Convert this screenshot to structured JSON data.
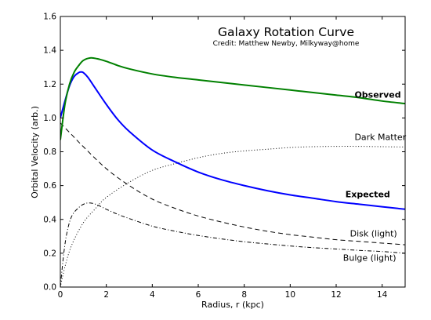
{
  "chart_data": {
    "type": "line",
    "title": "Galaxy Rotation Curve",
    "subtitle": "Credit:  Matthew Newby, Milkyway@home",
    "xlabel": "Radius, r (kpc)",
    "ylabel": "Orbital Velocity (arb.)",
    "xlim": [
      0,
      15
    ],
    "ylim": [
      0.0,
      1.6
    ],
    "x_ticks": [
      0,
      2,
      4,
      6,
      8,
      10,
      12,
      14
    ],
    "x_tick_labels": [
      "0",
      "2",
      "4",
      "6",
      "8",
      "10",
      "12",
      "14"
    ],
    "y_ticks": [
      0.0,
      0.2,
      0.4,
      0.6,
      0.8,
      1.0,
      1.2,
      1.4,
      1.6
    ],
    "y_tick_labels": [
      "0.0",
      "0.2",
      "0.4",
      "0.6",
      "0.8",
      "1.0",
      "1.2",
      "1.4",
      "1.6"
    ],
    "grid": false,
    "legend": "none",
    "series": [
      {
        "name": "Observed",
        "color": "#008000",
        "style": "solid",
        "x": [
          0,
          0.2,
          0.4,
          0.6,
          0.8,
          1.0,
          1.3,
          1.6,
          2.0,
          2.5,
          3,
          4,
          5,
          6,
          7,
          8,
          9,
          10,
          11,
          12,
          13,
          14,
          15
        ],
        "y": [
          0.87,
          1.08,
          1.2,
          1.27,
          1.31,
          1.34,
          1.355,
          1.35,
          1.335,
          1.31,
          1.29,
          1.26,
          1.24,
          1.225,
          1.21,
          1.195,
          1.18,
          1.165,
          1.15,
          1.135,
          1.12,
          1.1,
          1.085
        ]
      },
      {
        "name": "Expected",
        "color": "#0000ff",
        "style": "solid",
        "x": [
          0,
          0.2,
          0.4,
          0.6,
          0.8,
          0.9,
          1.0,
          1.2,
          1.5,
          2.0,
          2.5,
          3,
          4,
          5,
          6,
          7,
          8,
          9,
          10,
          11,
          12,
          13,
          14,
          15
        ],
        "y": [
          1.0,
          1.1,
          1.19,
          1.245,
          1.268,
          1.272,
          1.268,
          1.24,
          1.18,
          1.08,
          0.99,
          0.92,
          0.81,
          0.74,
          0.68,
          0.635,
          0.6,
          0.57,
          0.545,
          0.525,
          0.505,
          0.49,
          0.475,
          0.46
        ]
      },
      {
        "name": "Dark Matter",
        "color": "#000000",
        "style": "dotted",
        "x": [
          0,
          0.2,
          0.5,
          1.0,
          1.5,
          2,
          3,
          4,
          5,
          6,
          7,
          8,
          9,
          10,
          11,
          12,
          13,
          14,
          15
        ],
        "y": [
          0.0,
          0.12,
          0.25,
          0.38,
          0.46,
          0.53,
          0.62,
          0.69,
          0.73,
          0.765,
          0.79,
          0.805,
          0.815,
          0.825,
          0.83,
          0.832,
          0.832,
          0.83,
          0.828
        ]
      },
      {
        "name": "Disk (light)",
        "color": "#000000",
        "style": "dashed",
        "x": [
          0,
          0.5,
          1,
          2,
          3,
          4,
          5,
          6,
          7,
          8,
          9,
          10,
          11,
          12,
          13,
          14,
          15
        ],
        "y": [
          0.97,
          0.9,
          0.83,
          0.7,
          0.6,
          0.52,
          0.465,
          0.42,
          0.385,
          0.355,
          0.33,
          0.31,
          0.295,
          0.28,
          0.27,
          0.26,
          0.25
        ]
      },
      {
        "name": "Bulge (light)",
        "color": "#000000",
        "style": "dashdot",
        "x": [
          0,
          0.15,
          0.3,
          0.5,
          0.8,
          1.1,
          1.4,
          1.7,
          2,
          2.5,
          3,
          4,
          5,
          6,
          7,
          8,
          9,
          10,
          11,
          12,
          13,
          14,
          15
        ],
        "y": [
          0.0,
          0.2,
          0.33,
          0.42,
          0.47,
          0.495,
          0.495,
          0.48,
          0.46,
          0.43,
          0.405,
          0.36,
          0.33,
          0.305,
          0.285,
          0.268,
          0.255,
          0.243,
          0.233,
          0.225,
          0.217,
          0.21,
          0.2
        ]
      }
    ],
    "annotations": [
      {
        "text": "Observed",
        "x": 12.8,
        "y": 1.12,
        "bold": true
      },
      {
        "text": "Dark Matter",
        "x": 12.8,
        "y": 0.87,
        "bold": false
      },
      {
        "text": "Expected",
        "x": 12.4,
        "y": 0.53,
        "bold": true
      },
      {
        "text": "Disk (light)",
        "x": 12.6,
        "y": 0.3,
        "bold": false
      },
      {
        "text": "Bulge (light)",
        "x": 12.3,
        "y": 0.155,
        "bold": false
      }
    ]
  }
}
